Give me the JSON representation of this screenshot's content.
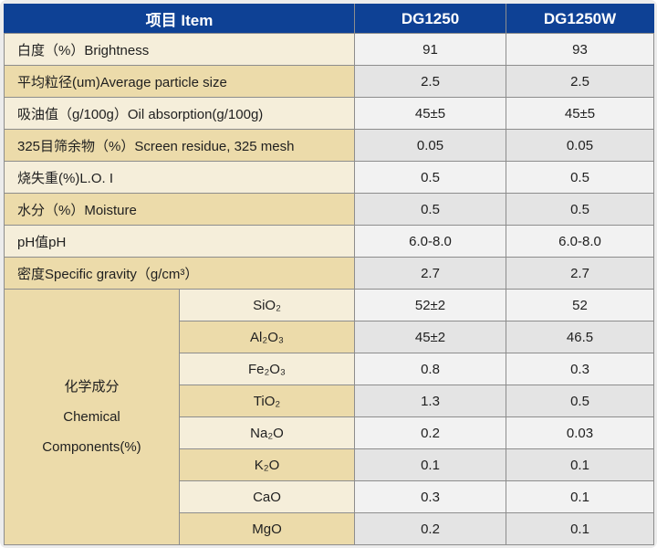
{
  "table": {
    "header": {
      "item": "项目  Item",
      "col_dg1250": "DG1250",
      "col_dg1250w": "DG1250W"
    },
    "properties": [
      {
        "label": "白度（%）Brightness",
        "dg1250": "91",
        "dg1250w": "93"
      },
      {
        "label": "平均粒径(um)Average particle size",
        "dg1250": "2.5",
        "dg1250w": "2.5"
      },
      {
        "label": "吸油值（g/100g）Oil absorption(g/100g)",
        "dg1250": "45±5",
        "dg1250w": "45±5"
      },
      {
        "label": "325目筛余物（%）Screen residue, 325 mesh",
        "dg1250": "0.05",
        "dg1250w": "0.05"
      },
      {
        "label": "烧失重(%)L.O. I",
        "dg1250": "0.5",
        "dg1250w": "0.5"
      },
      {
        "label": "水分（%）Moisture",
        "dg1250": "0.5",
        "dg1250w": "0.5"
      },
      {
        "label": "pH值pH",
        "dg1250": "6.0-8.0",
        "dg1250w": "6.0-8.0"
      },
      {
        "label": "密度Specific gravity（g/cm³）",
        "dg1250": "2.7",
        "dg1250w": "2.7"
      }
    ],
    "chemical": {
      "label_lines": [
        "化学成分",
        "Chemical",
        "Components(%)"
      ],
      "rows": [
        {
          "formula": "SiO₂",
          "dg1250": "52±2",
          "dg1250w": "52"
        },
        {
          "formula": "Al₂O₃",
          "dg1250": "45±2",
          "dg1250w": "46.5"
        },
        {
          "formula": "Fe₂O₃",
          "dg1250": "0.8",
          "dg1250w": "0.3"
        },
        {
          "formula": "TiO₂",
          "dg1250": "1.3",
          "dg1250w": "0.5"
        },
        {
          "formula": "Na₂O",
          "dg1250": "0.2",
          "dg1250w": "0.03"
        },
        {
          "formula": "K₂O",
          "dg1250": "0.1",
          "dg1250w": "0.1"
        },
        {
          "formula": "CaO",
          "dg1250": "0.3",
          "dg1250w": "0.1"
        },
        {
          "formula": "MgO",
          "dg1250": "0.2",
          "dg1250w": "0.1"
        }
      ]
    },
    "colors": {
      "header_bg": "#0e4195",
      "header_text": "#ffffff",
      "row_cream": "#f5eeda",
      "row_tan": "#ecdbaa",
      "value_light": "#f2f2f2",
      "value_gray": "#e4e4e4",
      "grid_border": "#8d8d8d",
      "frame_bg": "#ececec"
    }
  }
}
